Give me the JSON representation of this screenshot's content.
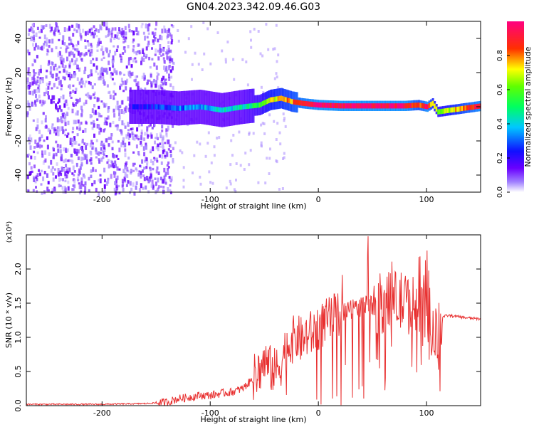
{
  "title": "GN04.2023.342.09.46.G03",
  "chart_data": [
    {
      "type": "heatmap",
      "xlabel": "Height of straight line (km)",
      "ylabel": "Frequency (Hz)",
      "xlim": [
        -270,
        150
      ],
      "ylim": [
        -50,
        50
      ],
      "xticks": [
        -200,
        -100,
        0,
        100
      ],
      "yticks": [
        -40,
        -20,
        0,
        20,
        40
      ],
      "colorbar": {
        "label": "Normalized spectral amplitude",
        "range": [
          0.0,
          1.0
        ],
        "ticks": [
          "0.0",
          "0.2",
          "0.4",
          "0.6",
          "0.8"
        ],
        "colors": [
          "#ffffff",
          "#8800ff",
          "#0000ff",
          "#00ffff",
          "#00ff00",
          "#ffff00",
          "#ff0000",
          "#ff0080"
        ]
      },
      "ridge": {
        "x": [
          -175,
          -150,
          -130,
          -110,
          -90,
          -70,
          -55,
          -45,
          -35,
          -25,
          -15,
          0,
          20,
          50,
          80,
          92,
          100,
          105,
          110,
          150
        ],
        "frequency": [
          0,
          0,
          -1,
          0,
          -2,
          0,
          1,
          4,
          5,
          3,
          2,
          1,
          0.5,
          0.5,
          0.5,
          1,
          0,
          2,
          -3,
          0.5
        ],
        "amplitude": [
          0.2,
          0.25,
          0.3,
          0.35,
          0.4,
          0.45,
          0.55,
          0.7,
          0.75,
          0.8,
          0.9,
          0.95,
          0.95,
          0.95,
          0.95,
          0.8,
          0.95,
          0.7,
          0.6,
          0.95
        ]
      }
    },
    {
      "type": "line",
      "xlabel": "Height of straight line (km)",
      "ylabel": "SNR (10 * v/v)",
      "yscale_label": "(x10⁴)",
      "xlim": [
        -270,
        150
      ],
      "ylim": [
        0,
        2.5
      ],
      "xticks": [
        -200,
        -100,
        0,
        100
      ],
      "yticks": [
        "0.0",
        "0.5",
        "1.0",
        "1.5",
        "2.0"
      ],
      "series": [
        {
          "color": "#e83030",
          "x": [
            -270,
            -240,
            -200,
            -160,
            -140,
            -130,
            -120,
            -110,
            -100,
            -90,
            -80,
            -70,
            -60,
            -55,
            -50,
            -45,
            -40,
            -35,
            -30,
            -25,
            -20,
            -15,
            -10,
            -5,
            0,
            5,
            10,
            15,
            20,
            25,
            30,
            40,
            50,
            60,
            70,
            80,
            90,
            100,
            105,
            110,
            115,
            120,
            130,
            140,
            150
          ],
          "y": [
            0.02,
            0.02,
            0.02,
            0.03,
            0.05,
            0.1,
            0.12,
            0.15,
            0.15,
            0.18,
            0.2,
            0.25,
            0.4,
            0.5,
            0.65,
            0.55,
            0.5,
            0.6,
            0.85,
            0.95,
            1.0,
            0.95,
            1.05,
            1.05,
            1.15,
            1.2,
            1.25,
            1.3,
            1.35,
            1.4,
            1.42,
            1.45,
            1.48,
            1.5,
            1.55,
            1.5,
            1.45,
            1.2,
            1.0,
            1.0,
            1.3,
            1.32,
            1.3,
            1.28,
            1.27
          ]
        }
      ]
    }
  ]
}
